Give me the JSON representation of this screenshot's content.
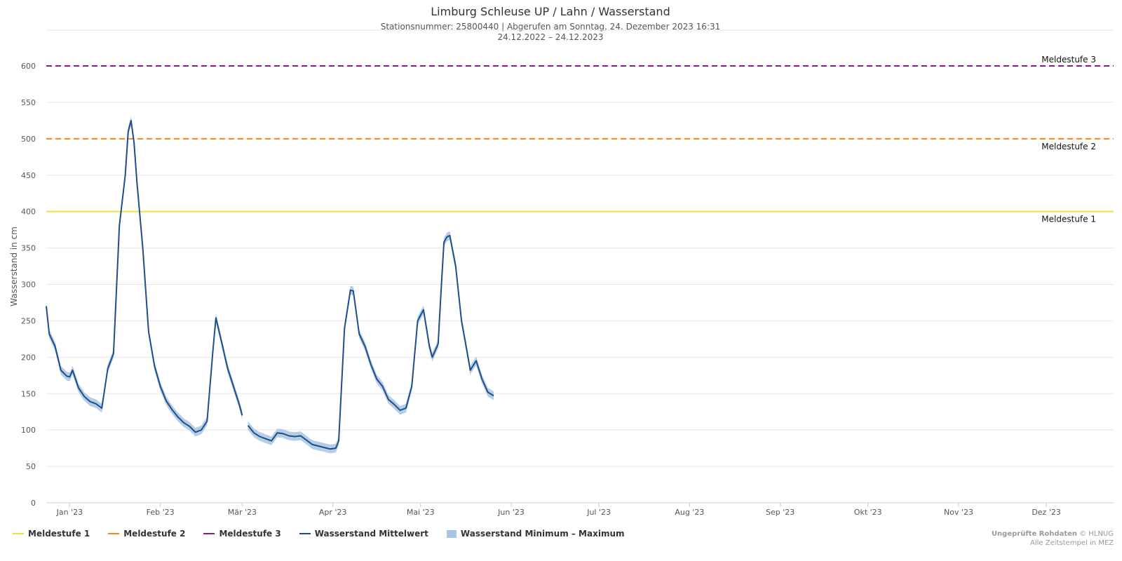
{
  "chart_data": {
    "type": "line",
    "title": "Limburg Schleuse UP / Lahn / Wasserstand",
    "subtitle_line1": "Stationsnummer: 25800440 | Abgerufen am Sonntag, 24. Dezember 2023 16:31",
    "subtitle_line2": "24.12.2022 – 24.12.2023",
    "ylabel": "Wasserstand in cm",
    "ylim": [
      0,
      600
    ],
    "xlim": [
      "2022-12-24",
      "2023-12-24"
    ],
    "yticks": [
      0,
      50,
      100,
      150,
      200,
      250,
      300,
      350,
      400,
      450,
      500,
      550,
      600
    ],
    "xticks": [
      {
        "date": "2023-01-01",
        "label": "Jan '23"
      },
      {
        "date": "2023-02-01",
        "label": "Feb '23"
      },
      {
        "date": "2023-03-01",
        "label": "Mär '23"
      },
      {
        "date": "2023-04-01",
        "label": "Apr '23"
      },
      {
        "date": "2023-05-01",
        "label": "Mai '23"
      },
      {
        "date": "2023-06-01",
        "label": "Jun '23"
      },
      {
        "date": "2023-07-01",
        "label": "Jul '23"
      },
      {
        "date": "2023-08-01",
        "label": "Aug '23"
      },
      {
        "date": "2023-09-01",
        "label": "Sep '23"
      },
      {
        "date": "2023-10-01",
        "label": "Okt '23"
      },
      {
        "date": "2023-11-01",
        "label": "Nov '23"
      },
      {
        "date": "2023-12-01",
        "label": "Dez '23"
      }
    ],
    "reference_lines": [
      {
        "name": "Meldestufe 1",
        "value": 400,
        "color": "#f0e040",
        "dash": "solid"
      },
      {
        "name": "Meldestufe 2",
        "value": 500,
        "color": "#f08a10",
        "dash": "dashed"
      },
      {
        "name": "Meldestufe 3",
        "value": 600,
        "color": "#8b1a8b",
        "dash": "dashed"
      }
    ],
    "series": [
      {
        "name": "Wasserstand Mittelwert",
        "color": "#1f4e8c",
        "segments": [
          [
            [
              "2022-12-24",
              270
            ],
            [
              "2022-12-25",
              232
            ],
            [
              "2022-12-27",
              215
            ],
            [
              "2022-12-29",
              182
            ],
            [
              "2022-12-31",
              174
            ],
            [
              "2023-01-01",
              173
            ],
            [
              "2023-01-02",
              182
            ],
            [
              "2023-01-04",
              158
            ],
            [
              "2023-01-06",
              146
            ],
            [
              "2023-01-08",
              139
            ],
            [
              "2023-01-10",
              136
            ],
            [
              "2023-01-12",
              130
            ],
            [
              "2023-01-14",
              184
            ],
            [
              "2023-01-16",
              205
            ],
            [
              "2023-01-18",
              380
            ],
            [
              "2023-01-20",
              450
            ],
            [
              "2023-01-21",
              510
            ],
            [
              "2023-01-22",
              525
            ],
            [
              "2023-01-23",
              495
            ],
            [
              "2023-01-24",
              440
            ],
            [
              "2023-01-26",
              350
            ],
            [
              "2023-01-28",
              235
            ],
            [
              "2023-01-30",
              188
            ],
            [
              "2023-02-01",
              160
            ],
            [
              "2023-02-03",
              140
            ],
            [
              "2023-02-05",
              128
            ],
            [
              "2023-02-07",
              118
            ],
            [
              "2023-02-09",
              110
            ],
            [
              "2023-02-11",
              105
            ],
            [
              "2023-02-13",
              97
            ],
            [
              "2023-02-15",
              100
            ],
            [
              "2023-02-17",
              112
            ],
            [
              "2023-02-19",
              210
            ],
            [
              "2023-02-20",
              254
            ],
            [
              "2023-02-22",
              220
            ],
            [
              "2023-02-24",
              185
            ],
            [
              "2023-02-26",
              160
            ],
            [
              "2023-02-28",
              135
            ],
            [
              "2023-03-01",
              120
            ]
          ],
          [
            [
              "2023-03-03",
              106
            ],
            [
              "2023-03-05",
              96
            ],
            [
              "2023-03-07",
              91
            ],
            [
              "2023-03-09",
              88
            ],
            [
              "2023-03-11",
              85
            ],
            [
              "2023-03-13",
              96
            ],
            [
              "2023-03-15",
              95
            ],
            [
              "2023-03-17",
              92
            ],
            [
              "2023-03-19",
              91
            ],
            [
              "2023-03-21",
              92
            ],
            [
              "2023-03-23",
              86
            ],
            [
              "2023-03-25",
              80
            ],
            [
              "2023-03-27",
              78
            ],
            [
              "2023-03-29",
              76
            ],
            [
              "2023-03-31",
              74
            ],
            [
              "2023-04-02",
              75
            ],
            [
              "2023-04-03",
              85
            ],
            [
              "2023-04-05",
              240
            ],
            [
              "2023-04-07",
              292
            ],
            [
              "2023-04-08",
              291
            ],
            [
              "2023-04-10",
              232
            ],
            [
              "2023-04-12",
              215
            ],
            [
              "2023-04-14",
              190
            ],
            [
              "2023-04-16",
              170
            ],
            [
              "2023-04-18",
              160
            ],
            [
              "2023-04-20",
              142
            ],
            [
              "2023-04-22",
              135
            ],
            [
              "2023-04-24",
              127
            ],
            [
              "2023-04-26",
              130
            ],
            [
              "2023-04-28",
              160
            ],
            [
              "2023-04-30",
              250
            ],
            [
              "2023-05-02",
              265
            ],
            [
              "2023-05-04",
              215
            ],
            [
              "2023-05-05",
              200
            ],
            [
              "2023-05-07",
              218
            ],
            [
              "2023-05-08",
              290
            ],
            [
              "2023-05-09",
              358
            ],
            [
              "2023-05-10",
              365
            ],
            [
              "2023-05-11",
              367
            ],
            [
              "2023-05-13",
              325
            ],
            [
              "2023-05-15",
              250
            ],
            [
              "2023-05-17",
              205
            ],
            [
              "2023-05-18",
              182
            ],
            [
              "2023-05-20",
              195
            ],
            [
              "2023-05-22",
              170
            ],
            [
              "2023-05-24",
              152
            ],
            [
              "2023-05-26",
              147
            ]
          ]
        ]
      }
    ]
  },
  "legend": [
    {
      "label": "Meldestufe 1",
      "color": "#f0e040",
      "kind": "line"
    },
    {
      "label": "Meldestufe 2",
      "color": "#f08a10",
      "kind": "line"
    },
    {
      "label": "Meldestufe 3",
      "color": "#8b1a8b",
      "kind": "line"
    },
    {
      "label": "Wasserstand Mittelwert",
      "color": "#1f4e8c",
      "kind": "line"
    },
    {
      "label": "Wasserstand Minimum – Maximum",
      "color": "#a8c4e0",
      "kind": "box"
    }
  ],
  "credits": {
    "line1_bold": "Ungeprüfte Rohdaten",
    "line1_rest": " © HLNUG",
    "line2": "Alle Zeitstempel in MEZ"
  }
}
